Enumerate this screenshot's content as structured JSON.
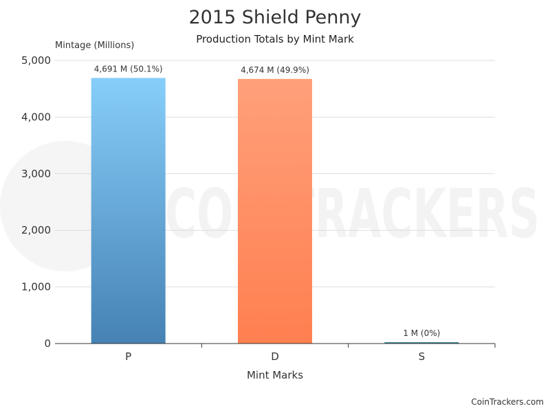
{
  "chart_data": {
    "type": "bar",
    "title": "2015 Shield Penny",
    "subtitle": "Production Totals by Mint Mark",
    "xlabel": "Mint Marks",
    "ylabel": "Mintage (Millions)",
    "categories": [
      "P",
      "D",
      "S"
    ],
    "values": [
      4691,
      4674,
      1
    ],
    "data_labels": [
      "4,691 M (50.1%)",
      "4,674 M (49.9%)",
      "1 M (0%)"
    ],
    "ylim": [
      0,
      5000
    ],
    "yticks": [
      0,
      1000,
      2000,
      3000,
      4000,
      5000
    ],
    "ytick_labels": [
      "0",
      "1,000",
      "2,000",
      "3,000",
      "4,000",
      "5,000"
    ],
    "grid": true,
    "legend": "none",
    "colors": [
      {
        "top": "#87cefa",
        "bottom": "#4682b4"
      },
      {
        "top": "#ffa07a",
        "bottom": "#ff7f50"
      },
      {
        "top": "#4a8fa0",
        "bottom": "#2f6f7f"
      }
    ]
  },
  "watermark": "COINTRACKERS",
  "footer": "CoinTrackers.com"
}
